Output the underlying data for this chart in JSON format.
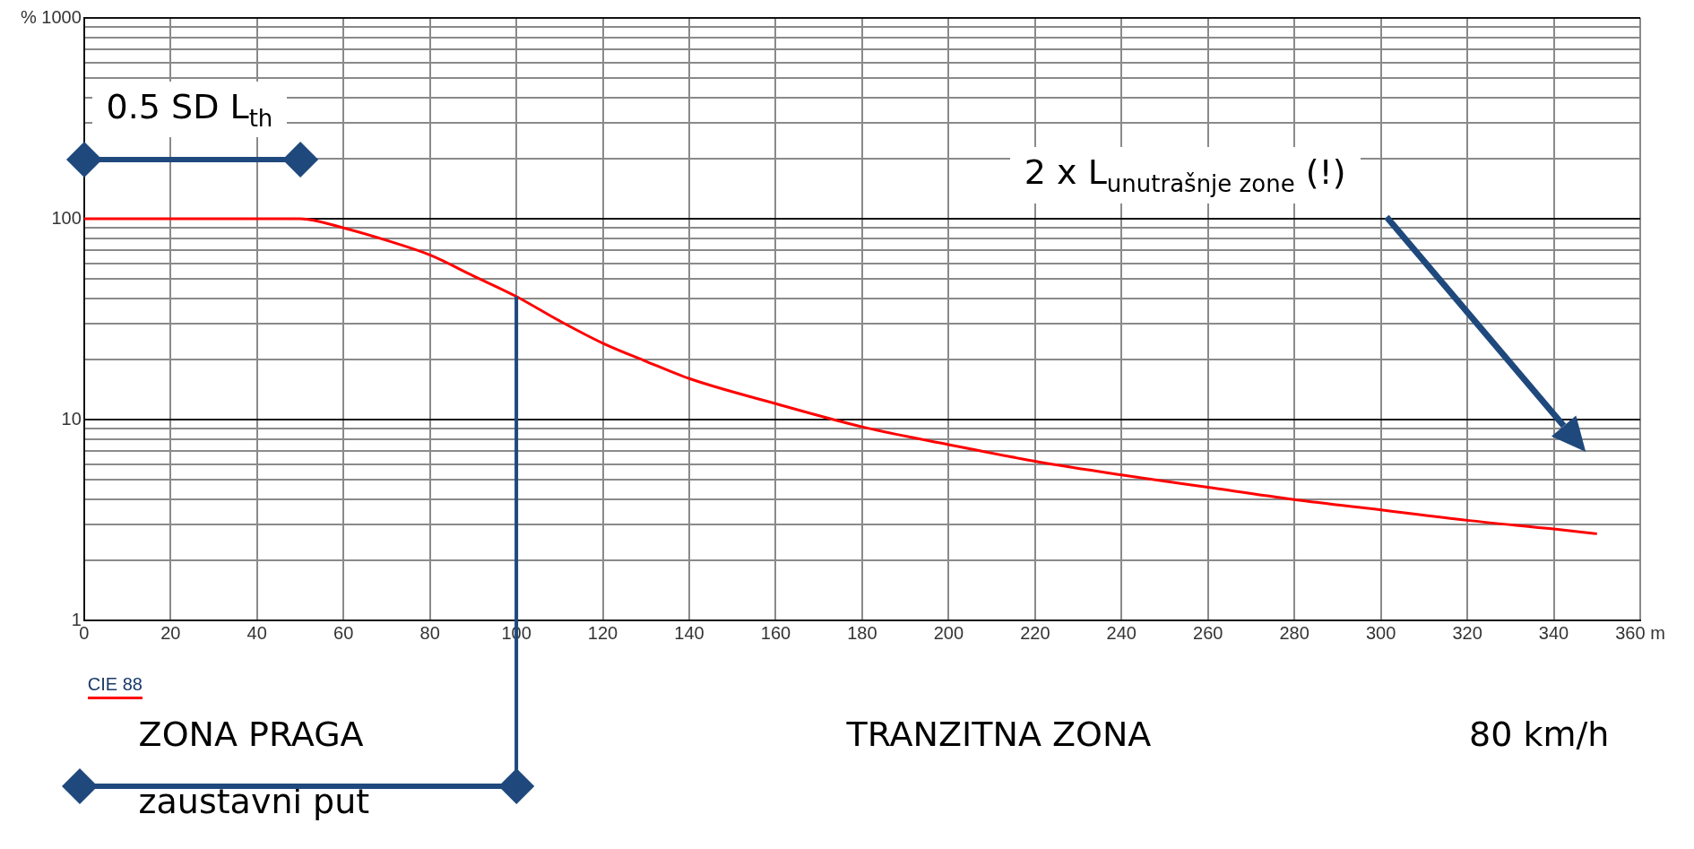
{
  "chart_data": {
    "type": "line",
    "x": [
      0,
      10,
      20,
      30,
      40,
      50,
      60,
      70,
      80,
      90,
      100,
      110,
      120,
      130,
      140,
      160,
      180,
      200,
      220,
      240,
      260,
      280,
      300,
      320,
      340,
      350
    ],
    "series": [
      {
        "name": "CIE 88",
        "color": "#ff0000",
        "values": [
          100,
          100,
          100,
          100,
          100,
          100,
          90,
          78,
          66,
          52,
          41,
          31,
          24,
          19.5,
          16,
          12,
          9.2,
          7.5,
          6.2,
          5.3,
          4.6,
          4,
          3.55,
          3.15,
          2.85,
          2.7
        ]
      }
    ],
    "xlim": [
      0,
      360
    ],
    "xticks": [
      0,
      20,
      40,
      60,
      80,
      100,
      120,
      140,
      160,
      180,
      200,
      220,
      240,
      260,
      280,
      300,
      320,
      340,
      {
        "value": 360,
        "label": "360 m"
      }
    ],
    "ylim": [
      1,
      1000
    ],
    "yticks": [
      1,
      {
        "value": 2,
        "label": null
      },
      {
        "value": 3,
        "label": null
      },
      {
        "value": 4,
        "label": null
      },
      {
        "value": 5,
        "label": null
      },
      {
        "value": 6,
        "label": null
      },
      {
        "value": 7,
        "label": null
      },
      {
        "value": 8,
        "label": null
      },
      {
        "value": 9,
        "label": null
      },
      10,
      {
        "value": 20,
        "label": null
      },
      {
        "value": 30,
        "label": null
      },
      {
        "value": 40,
        "label": null
      },
      {
        "value": 50,
        "label": null
      },
      {
        "value": 60,
        "label": null
      },
      {
        "value": 70,
        "label": null
      },
      {
        "value": 80,
        "label": null
      },
      {
        "value": 90,
        "label": null
      },
      100,
      {
        "value": 200,
        "label": null
      },
      {
        "value": 300,
        "label": null
      },
      {
        "value": 400,
        "label": null
      },
      {
        "value": 500,
        "label": null
      },
      {
        "value": 600,
        "label": null
      },
      {
        "value": 700,
        "label": null
      },
      {
        "value": 800,
        "label": null
      },
      {
        "value": 900,
        "label": null
      },
      {
        "value": 1000,
        "label": "% 1000"
      }
    ],
    "ref_lines": [
      {
        "axis": "x",
        "value": 100,
        "color": "#1f497d"
      }
    ],
    "log": "y",
    "grid": true,
    "legend": "bottom left",
    "marker": "none",
    "line_style": "solid",
    "annotations": [
      "0.5 SD   L$_{th}$",
      "2 x L$_{unutrašnje zone}$ (!)",
      "ZONA PRAGA",
      "zaustavni put",
      "TRANZITNA ZONA",
      "80 km/h"
    ]
  }
}
